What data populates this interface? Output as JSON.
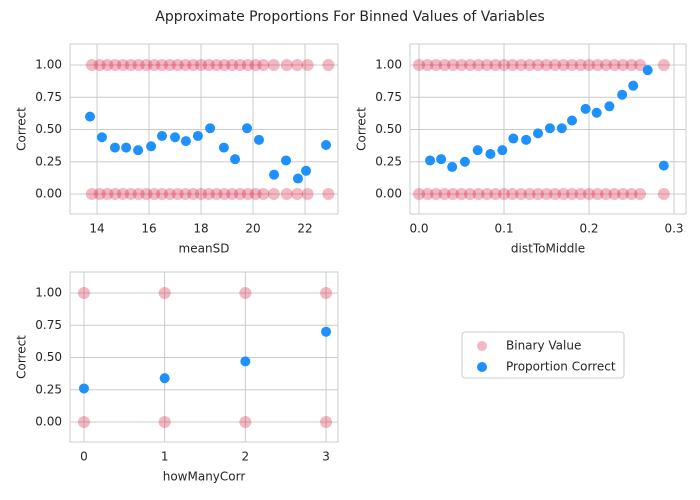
{
  "title": "Approximate Proportions For Binned Values of Variables",
  "legend_loc": "center right",
  "chart_data": [
    {
      "type": "scatter",
      "xlabel": "meanSD",
      "ylabel": "Correct",
      "xlim": [
        12.96,
        23.27
      ],
      "ylim": [
        -0.155,
        1.163
      ],
      "grid": true,
      "xticks": [
        14,
        16,
        18,
        20,
        22
      ],
      "yticks": [
        {
          "value": 0,
          "label": "0.00"
        },
        {
          "value": 0.25,
          "label": "0.25"
        },
        {
          "value": 0.5,
          "label": "0.50"
        },
        {
          "value": 0.75,
          "label": "0.75"
        },
        {
          "value": 1,
          "label": "1.00"
        }
      ],
      "series": [
        {
          "name": "Binary Value",
          "color": "#dc143c",
          "opacity": 0.3,
          "x": [
            13.8,
            14.1,
            14.4,
            14.7,
            15.0,
            15.3,
            15.6,
            15.9,
            16.2,
            16.5,
            16.8,
            17.1,
            17.4,
            17.7,
            18.0,
            18.3,
            18.6,
            18.9,
            19.2,
            19.5,
            19.8,
            20.1,
            20.4,
            20.8,
            21.3,
            21.7,
            22.1,
            22.9,
            13.8,
            14.1,
            14.4,
            14.7,
            15.0,
            15.3,
            15.6,
            15.9,
            16.2,
            16.5,
            16.8,
            17.1,
            17.4,
            17.7,
            18.0,
            18.3,
            18.6,
            18.9,
            19.2,
            19.5,
            19.8,
            20.1,
            20.4,
            20.8,
            21.3,
            21.7,
            22.1,
            22.9
          ],
          "values": [
            1,
            1,
            1,
            1,
            1,
            1,
            1,
            1,
            1,
            1,
            1,
            1,
            1,
            1,
            1,
            1,
            1,
            1,
            1,
            1,
            1,
            1,
            1,
            1,
            1,
            1,
            1,
            1,
            0,
            0,
            0,
            0,
            0,
            0,
            0,
            0,
            0,
            0,
            0,
            0,
            0,
            0,
            0,
            0,
            0,
            0,
            0,
            0,
            0,
            0,
            0,
            0,
            0,
            0,
            0,
            0
          ]
        },
        {
          "name": "Proportion Correct",
          "color": "#1e90ff",
          "opacity": 1,
          "x": [
            13.73,
            14.19,
            14.69,
            15.12,
            15.58,
            16.08,
            16.5,
            17.0,
            17.42,
            17.88,
            18.35,
            18.88,
            19.31,
            19.77,
            20.23,
            20.81,
            21.27,
            21.73,
            22.04,
            22.81
          ],
          "values": [
            0.6,
            0.44,
            0.36,
            0.36,
            0.34,
            0.37,
            0.45,
            0.44,
            0.41,
            0.45,
            0.51,
            0.36,
            0.27,
            0.51,
            0.42,
            0.15,
            0.26,
            0.12,
            0.18,
            0.38
          ]
        }
      ]
    },
    {
      "type": "scatter",
      "xlabel": "distToMiddle",
      "ylabel": "Correct",
      "xlim": [
        -0.0106,
        0.3141
      ],
      "ylim": [
        -0.155,
        1.163
      ],
      "grid": true,
      "xticks": [
        {
          "value": 0,
          "label": "0.0"
        },
        {
          "value": 0.1,
          "label": "0.1"
        },
        {
          "value": 0.2,
          "label": "0.2"
        },
        {
          "value": 0.3,
          "label": "0.3"
        }
      ],
      "yticks": [
        {
          "value": 0,
          "label": "0.00"
        },
        {
          "value": 0.25,
          "label": "0.25"
        },
        {
          "value": 0.5,
          "label": "0.50"
        },
        {
          "value": 0.75,
          "label": "0.75"
        },
        {
          "value": 1,
          "label": "1.00"
        }
      ],
      "series": [
        {
          "name": "Binary Value",
          "color": "#dc143c",
          "opacity": 0.3,
          "x": [
            0.0,
            0.01,
            0.02,
            0.03,
            0.04,
            0.05,
            0.06,
            0.07,
            0.08,
            0.09,
            0.1,
            0.11,
            0.12,
            0.13,
            0.14,
            0.15,
            0.16,
            0.17,
            0.18,
            0.19,
            0.2,
            0.21,
            0.22,
            0.23,
            0.24,
            0.25,
            0.26,
            0.288,
            0.0,
            0.01,
            0.02,
            0.03,
            0.04,
            0.05,
            0.06,
            0.07,
            0.08,
            0.09,
            0.1,
            0.11,
            0.12,
            0.13,
            0.14,
            0.15,
            0.16,
            0.17,
            0.18,
            0.19,
            0.2,
            0.21,
            0.22,
            0.23,
            0.24,
            0.25,
            0.26,
            0.288
          ],
          "values": [
            1,
            1,
            1,
            1,
            1,
            1,
            1,
            1,
            1,
            1,
            1,
            1,
            1,
            1,
            1,
            1,
            1,
            1,
            1,
            1,
            1,
            1,
            1,
            1,
            1,
            1,
            1,
            1,
            0,
            0,
            0,
            0,
            0,
            0,
            0,
            0,
            0,
            0,
            0,
            0,
            0,
            0,
            0,
            0,
            0,
            0,
            0,
            0,
            0,
            0,
            0,
            0,
            0,
            0,
            0,
            0
          ]
        },
        {
          "name": "Proportion Correct",
          "color": "#1e90ff",
          "opacity": 1,
          "x": [
            0.013,
            0.026,
            0.039,
            0.054,
            0.069,
            0.084,
            0.098,
            0.111,
            0.126,
            0.14,
            0.154,
            0.168,
            0.18,
            0.196,
            0.209,
            0.224,
            0.239,
            0.252,
            0.269,
            0.288
          ],
          "values": [
            0.26,
            0.27,
            0.21,
            0.25,
            0.34,
            0.31,
            0.34,
            0.43,
            0.42,
            0.47,
            0.51,
            0.51,
            0.57,
            0.66,
            0.63,
            0.68,
            0.77,
            0.84,
            0.96,
            0.22
          ]
        }
      ]
    },
    {
      "type": "scatter",
      "xlabel": "howManyCorr",
      "ylabel": "Correct",
      "xlim": [
        -0.173,
        3.148
      ],
      "ylim": [
        -0.155,
        1.163
      ],
      "grid": true,
      "xticks": [
        0,
        1,
        2,
        3
      ],
      "yticks": [
        {
          "value": 0,
          "label": "0.00"
        },
        {
          "value": 0.25,
          "label": "0.25"
        },
        {
          "value": 0.5,
          "label": "0.50"
        },
        {
          "value": 0.75,
          "label": "0.75"
        },
        {
          "value": 1,
          "label": "1.00"
        }
      ],
      "series": [
        {
          "name": "Binary Value",
          "color": "#dc143c",
          "opacity": 0.3,
          "x": [
            0,
            1,
            2,
            3,
            0,
            1,
            2,
            3
          ],
          "values": [
            1,
            1,
            1,
            1,
            0,
            0,
            0,
            0
          ]
        },
        {
          "name": "Proportion Correct",
          "color": "#1e90ff",
          "opacity": 1,
          "x": [
            0,
            1,
            2,
            3
          ],
          "values": [
            0.26,
            0.34,
            0.47,
            0.7
          ]
        }
      ]
    }
  ]
}
